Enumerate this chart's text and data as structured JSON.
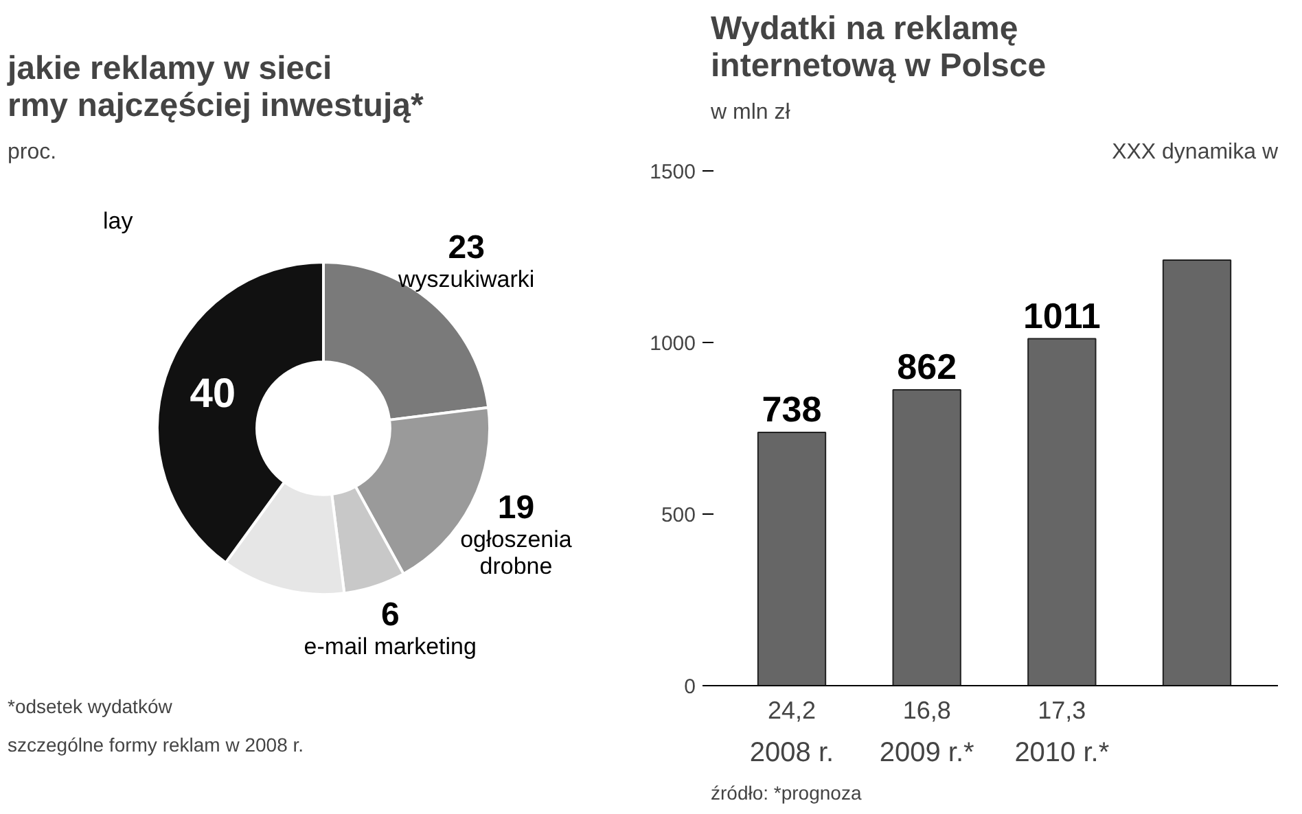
{
  "chart_data": [
    {
      "type": "donut",
      "title": "jakie reklamy w sieci\nrmy najczęściej inwestują*",
      "subtitle": "proc.",
      "categories": [
        "wyszukiwarki",
        "ogłoszenia drobne",
        "e-mail marketing",
        null,
        "lay"
      ],
      "values": [
        23,
        19,
        6,
        12,
        40
      ],
      "value_labels": [
        "23",
        "19",
        "6",
        null,
        "40"
      ],
      "colors": [
        "#7a7a7a",
        "#9a9a9a",
        "#c8c8c8",
        "#e6e6e6",
        "#111111"
      ],
      "annotations": [
        "*odsetek wydatków",
        "szczególne formy reklam w 2008 r."
      ]
    },
    {
      "type": "bar",
      "title": "Wydatki na reklamę\ninternetową w Polsce",
      "subtitle": "w mln zł",
      "categories": [
        "2008 r.",
        "2009 r.*",
        "2010 r.*",
        null
      ],
      "values": [
        738,
        862,
        1011,
        1240
      ],
      "value_labels": [
        "738",
        "862",
        "1011",
        null
      ],
      "color": "#666666",
      "ylim": [
        0,
        1500
      ],
      "yticks": [
        0,
        500,
        1000,
        1500
      ],
      "grid": false,
      "legend_title": "XXX dynamika w",
      "annotations": [
        "24,2",
        "16,8",
        "17,3",
        "źródło: *prognoza"
      ]
    }
  ]
}
